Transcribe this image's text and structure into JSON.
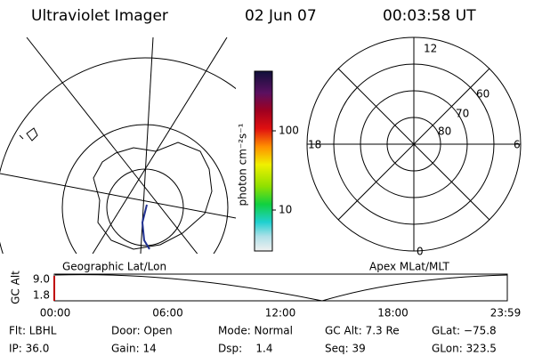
{
  "header": {
    "title": "Ultraviolet Imager",
    "date": "02 Jun 07",
    "time": "00:03:58 UT"
  },
  "colorbar": {
    "label": "photon cm⁻²s⁻¹",
    "ticks": [
      "100",
      "10"
    ]
  },
  "polar": {
    "labels": [
      "12",
      "18",
      "6",
      "0",
      "60",
      "70",
      "80"
    ]
  },
  "panels": {
    "left": "Geographic Lat/Lon",
    "right": "Apex MLat/MLT"
  },
  "altitude": {
    "label": "GC Alt",
    "yticks": [
      "9.0",
      "1.8"
    ],
    "xticks": [
      "00:00",
      "06:00",
      "12:00",
      "18:00",
      "23:59"
    ]
  },
  "info": {
    "rows": [
      [
        "Flt: LBHL",
        "Door: Open",
        "Mode: Normal",
        "GC Alt: 7.3 Re",
        "GLat: −75.8"
      ],
      [
        "IP: 36.0",
        "Gain: 14",
        "Dsp:    1.4",
        "Seq: 39",
        "GLon: 323.5"
      ]
    ]
  }
}
